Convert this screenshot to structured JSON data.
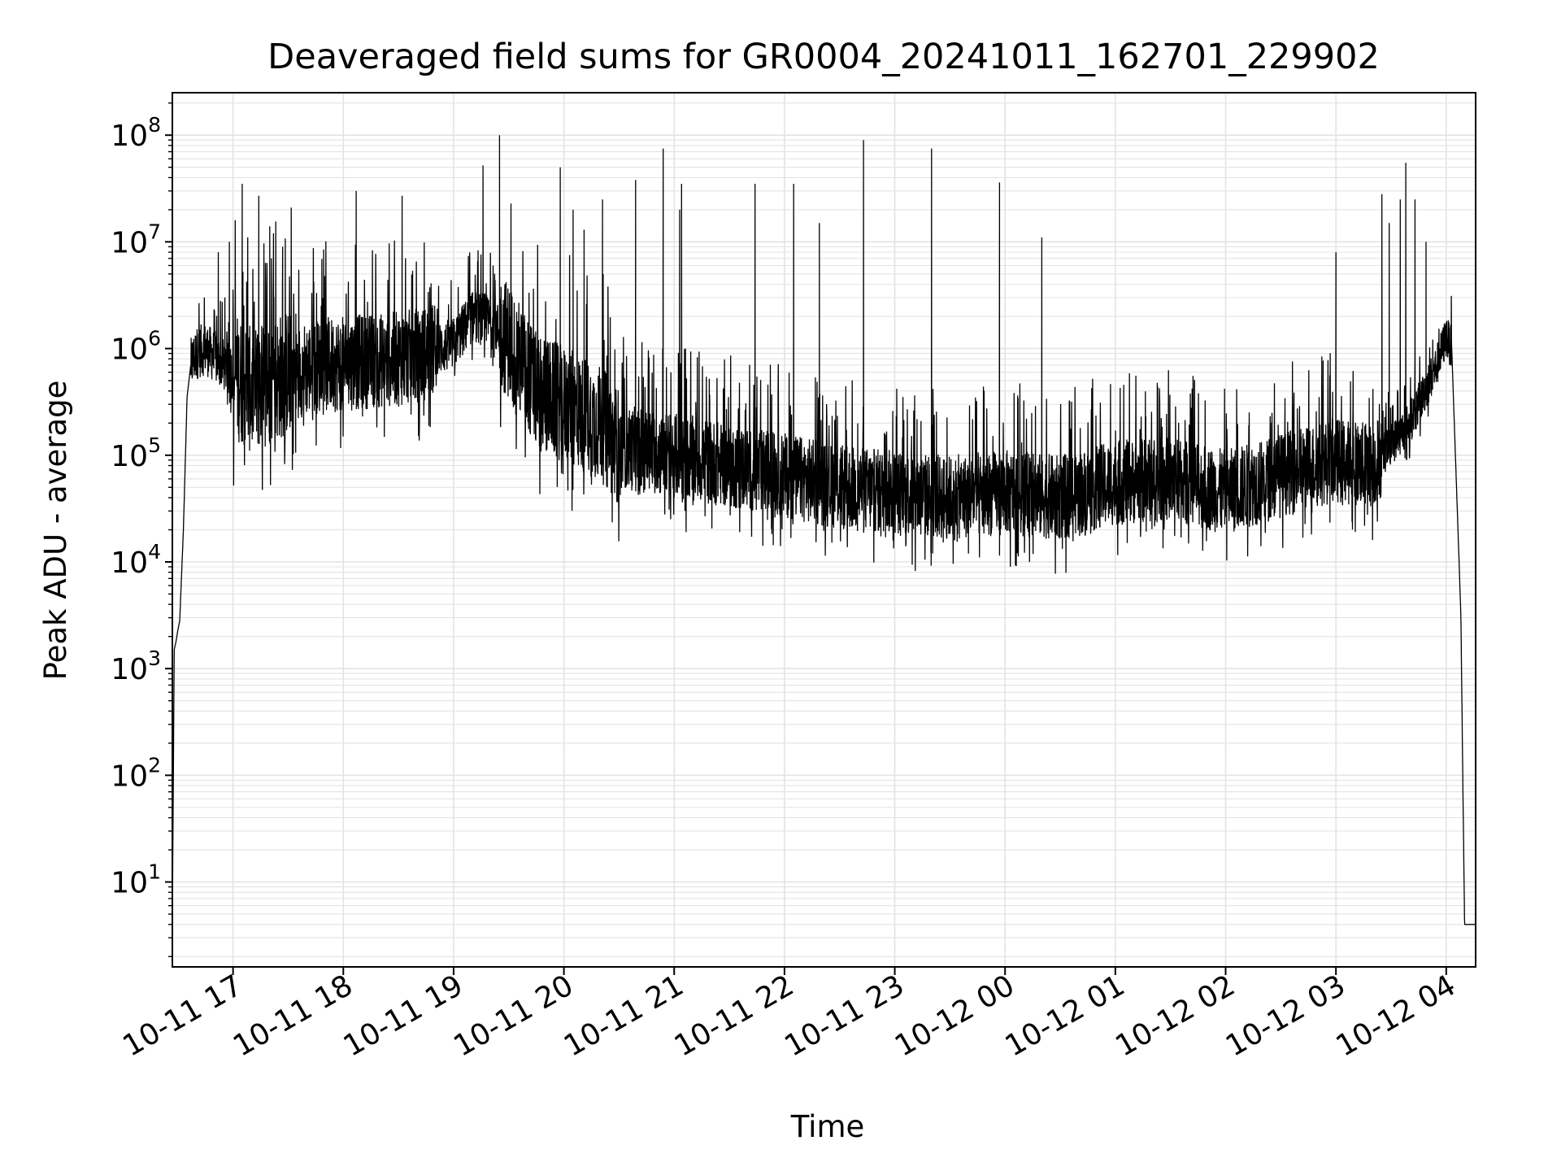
{
  "chart_data": {
    "type": "line",
    "title": "Deaveraged field sums for GR0004_20241011_162701_229902",
    "xlabel": "Time",
    "ylabel": "Peak ADU - average",
    "yscale": "log",
    "ylim": [
      1.6,
      250000000
    ],
    "xlim": [
      "2024-10-11 16:27",
      "2024-10-12 04:16"
    ],
    "grid": true,
    "line_color": "#000000",
    "grid_color": "#e3e3e3",
    "x_ticks": [
      {
        "t": "2024-10-11 17:00",
        "label": "10-11 17"
      },
      {
        "t": "2024-10-11 18:00",
        "label": "10-11 18"
      },
      {
        "t": "2024-10-11 19:00",
        "label": "10-11 19"
      },
      {
        "t": "2024-10-11 20:00",
        "label": "10-11 20"
      },
      {
        "t": "2024-10-11 21:00",
        "label": "10-11 21"
      },
      {
        "t": "2024-10-11 22:00",
        "label": "10-11 22"
      },
      {
        "t": "2024-10-11 23:00",
        "label": "10-11 23"
      },
      {
        "t": "2024-10-12 00:00",
        "label": "10-12 00"
      },
      {
        "t": "2024-10-12 01:00",
        "label": "10-12 01"
      },
      {
        "t": "2024-10-12 02:00",
        "label": "10-12 02"
      },
      {
        "t": "2024-10-12 03:00",
        "label": "10-12 03"
      },
      {
        "t": "2024-10-12 04:00",
        "label": "10-12 04"
      }
    ],
    "y_ticks": [
      {
        "value": 10,
        "base": "10",
        "exp": "1"
      },
      {
        "value": 100,
        "base": "10",
        "exp": "2"
      },
      {
        "value": 1000,
        "base": "10",
        "exp": "3"
      },
      {
        "value": 10000,
        "base": "10",
        "exp": "4"
      },
      {
        "value": 100000,
        "base": "10",
        "exp": "5"
      },
      {
        "value": 1000000,
        "base": "10",
        "exp": "6"
      },
      {
        "value": 10000000,
        "base": "10",
        "exp": "7"
      },
      {
        "value": 100000000,
        "base": "10",
        "exp": "8"
      }
    ],
    "series": [
      {
        "baseline": {
          "x": [
            "2024-10-11 16:27",
            "2024-10-11 16:28",
            "2024-10-11 16:29",
            "2024-10-11 16:30",
            "2024-10-11 16:31",
            "2024-10-11 16:33",
            "2024-10-11 16:35",
            "2024-10-11 16:37",
            "2024-10-11 16:40",
            "2024-10-11 16:45",
            "2024-10-11 16:55",
            "2024-10-11 17:10",
            "2024-10-11 17:30",
            "2024-10-11 17:50",
            "2024-10-11 18:10",
            "2024-10-11 18:30",
            "2024-10-11 18:45",
            "2024-10-11 19:00",
            "2024-10-11 19:10",
            "2024-10-11 19:20",
            "2024-10-11 19:30",
            "2024-10-11 19:45",
            "2024-10-11 20:00",
            "2024-10-11 20:20",
            "2024-10-11 20:30",
            "2024-10-11 21:00",
            "2024-10-11 21:30",
            "2024-10-11 22:00",
            "2024-10-11 22:30",
            "2024-10-11 23:00",
            "2024-10-11 23:30",
            "2024-10-12 00:00",
            "2024-10-12 00:30",
            "2024-10-12 01:00",
            "2024-10-12 01:30",
            "2024-10-12 02:00",
            "2024-10-12 02:30",
            "2024-10-12 03:00",
            "2024-10-12 03:20",
            "2024-10-12 03:40",
            "2024-10-12 03:55",
            "2024-10-12 04:00",
            "2024-10-12 04:03",
            "2024-10-12 04:05",
            "2024-10-12 04:07",
            "2024-10-12 04:08",
            "2024-10-12 04:09",
            "2024-10-12 04:10",
            "2024-10-12 04:16"
          ],
          "y": [
            3.8,
            1500,
            1800,
            2300,
            2800,
            20000,
            350000,
            700000,
            900000,
            1000000,
            700000,
            400000,
            600000,
            700000,
            750000,
            800000,
            900000,
            1100000,
            2000000,
            1800000,
            1200000,
            400000,
            300000,
            200000,
            120000,
            100000,
            80000,
            65000,
            50000,
            45000,
            40000,
            45000,
            40000,
            55000,
            60000,
            45000,
            65000,
            90000,
            80000,
            200000,
            700000,
            1300000,
            1000000,
            100000,
            10000,
            3000,
            100,
            4,
            4
          ]
        },
        "noise_band_log10": [
          {
            "from": "2024-10-11 16:37",
            "to": "2024-10-11 17:00",
            "band": 0.25
          },
          {
            "from": "2024-10-11 17:00",
            "to": "2024-10-11 17:35",
            "band": 0.6
          },
          {
            "from": "2024-10-11 17:35",
            "to": "2024-10-11 18:50",
            "band": 0.45
          },
          {
            "from": "2024-10-11 18:50",
            "to": "2024-10-11 19:25",
            "band": 0.25
          },
          {
            "from": "2024-10-11 19:25",
            "to": "2024-10-11 20:30",
            "band": 0.55
          },
          {
            "from": "2024-10-11 20:30",
            "to": "2024-10-12 03:25",
            "band": 0.4
          },
          {
            "from": "2024-10-12 03:25",
            "to": "2024-10-12 04:03",
            "band": 0.2
          }
        ],
        "spikes": {
          "x": [
            "2024-10-11 16:52",
            "2024-10-11 16:58",
            "2024-10-11 17:05",
            "2024-10-11 17:08",
            "2024-10-11 17:14",
            "2024-10-11 17:20",
            "2024-10-11 17:22",
            "2024-10-11 17:27",
            "2024-10-11 18:07",
            "2024-10-11 18:32",
            "2024-10-11 19:16",
            "2024-10-11 19:25",
            "2024-10-11 19:58",
            "2024-10-11 20:05",
            "2024-10-11 20:11",
            "2024-10-11 20:21",
            "2024-10-11 20:39",
            "2024-10-11 20:54",
            "2024-10-11 21:03",
            "21:04",
            "2024-10-11 21:44",
            "2024-10-11 22:05",
            "2024-10-11 22:19",
            "2024-10-11 22:43",
            "2024-10-11 23:20",
            "2024-10-11 23:57",
            "2024-10-12 00:20",
            "2024-10-12 03:00",
            "2024-10-12 03:25",
            "2024-10-12 03:29",
            "2024-10-12 03:35",
            "2024-10-12 03:38",
            "2024-10-12 03:43",
            "2024-10-12 03:49"
          ],
          "y": [
            8000000,
            10000000,
            35000000,
            11000000,
            27000000,
            14000000,
            12000000,
            9000000,
            30000000,
            27000000,
            52000000,
            100000000,
            50000000,
            20000000,
            13000000,
            25000000,
            38000000,
            75000000,
            20000000,
            35000000,
            35000000,
            35000000,
            15000000,
            90000000,
            75000000,
            36000000,
            11000000,
            8000000,
            28000000,
            15000000,
            25000000,
            55000000,
            25000000,
            10000000
          ]
        }
      }
    ]
  }
}
